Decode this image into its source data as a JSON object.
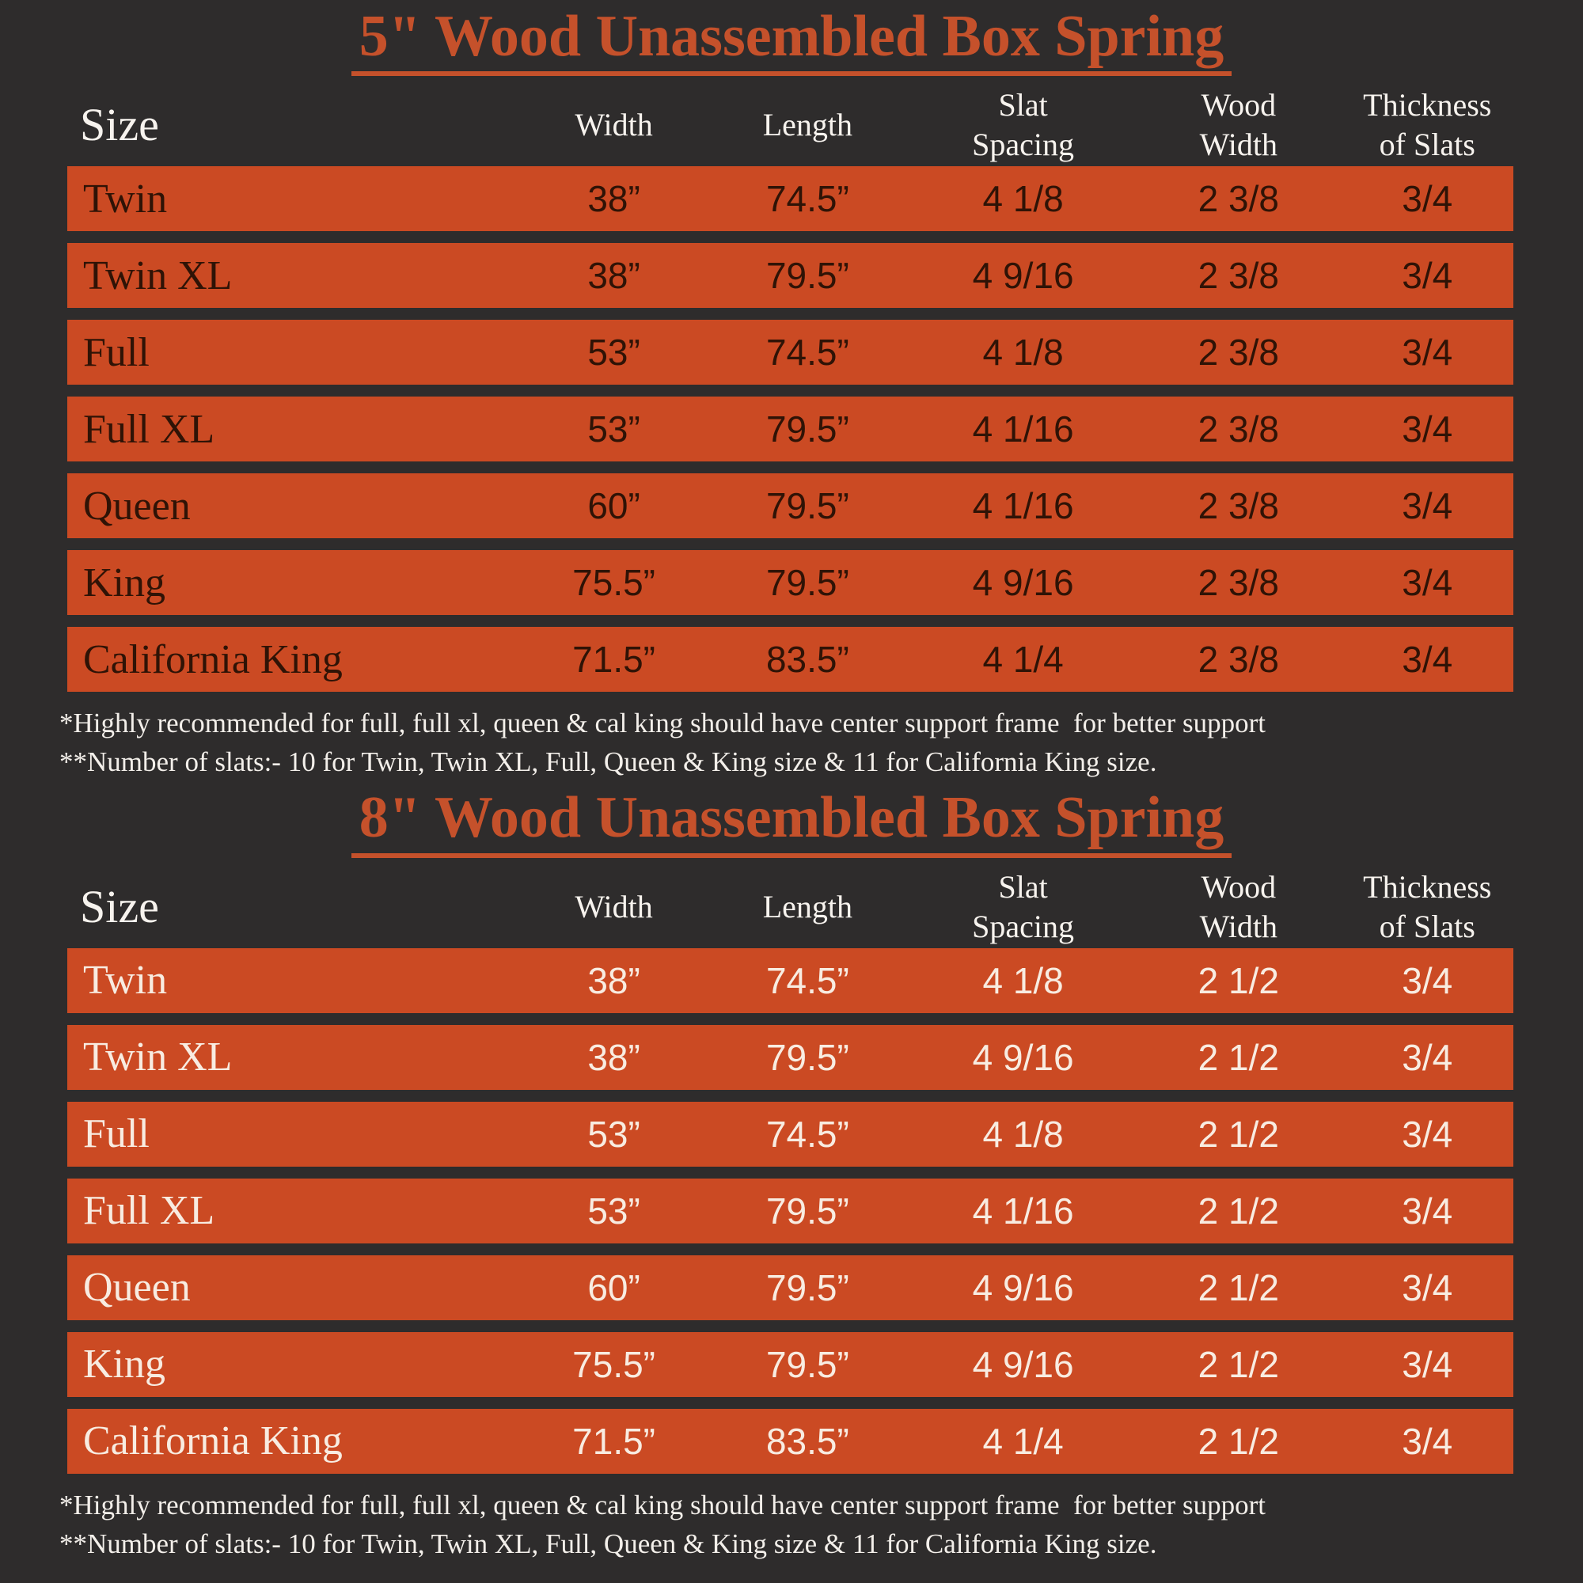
{
  "colors": {
    "background": "#2e2c2c",
    "accent_orange": "#c5512b",
    "row_orange": "#cb4a23",
    "table1_row_text": "#2f1306",
    "table2_row_text": "#f8ece1",
    "header_text": "#f7f3ee",
    "footnote_text": "#f3efea"
  },
  "tables": [
    {
      "title": "5\" Wood Unassembled Box Spring",
      "headers": {
        "size": "Size",
        "width": "Width",
        "length": "Length",
        "slat_spacing": "Slat\nSpacing",
        "wood_width": "Wood\nWidth",
        "thickness": "Thickness\nof Slats"
      },
      "rows": [
        [
          "Twin",
          "38”",
          "74.5”",
          "4 1/8",
          "2 3/8",
          "3/4"
        ],
        [
          "Twin XL",
          "38”",
          "79.5”",
          "4 9/16",
          "2 3/8",
          "3/4"
        ],
        [
          "Full",
          "53”",
          "74.5”",
          "4 1/8",
          "2 3/8",
          "3/4"
        ],
        [
          "Full XL",
          "53”",
          "79.5”",
          "4 1/16",
          "2 3/8",
          "3/4"
        ],
        [
          "Queen",
          "60”",
          "79.5”",
          "4 1/16",
          "2 3/8",
          "3/4"
        ],
        [
          "King",
          "75.5”",
          "79.5”",
          "4 9/16",
          "2 3/8",
          "3/4"
        ],
        [
          "California King",
          "71.5”",
          "83.5”",
          "4 1/4",
          "2 3/8",
          "3/4"
        ]
      ],
      "footnotes": [
        "*Highly recommended for full, full xl, queen & cal king should have center support frame  for better support",
        "**Number of slats:- 10 for Twin, Twin XL, Full, Queen & King size & 11 for California King size."
      ]
    },
    {
      "title": "8\" Wood Unassembled Box Spring",
      "headers": {
        "size": "Size",
        "width": "Width",
        "length": "Length",
        "slat_spacing": "Slat\nSpacing",
        "wood_width": "Wood\nWidth",
        "thickness": "Thickness\nof Slats"
      },
      "rows": [
        [
          "Twin",
          "38”",
          "74.5”",
          "4 1/8",
          "2 1/2",
          "3/4"
        ],
        [
          "Twin XL",
          "38”",
          "79.5”",
          "4 9/16",
          "2 1/2",
          "3/4"
        ],
        [
          "Full",
          "53”",
          "74.5”",
          "4 1/8",
          "2 1/2",
          "3/4"
        ],
        [
          "Full XL",
          "53”",
          "79.5”",
          "4 1/16",
          "2 1/2",
          "3/4"
        ],
        [
          "Queen",
          "60”",
          "79.5”",
          "4 9/16",
          "2 1/2",
          "3/4"
        ],
        [
          "King",
          "75.5”",
          "79.5”",
          "4 9/16",
          "2 1/2",
          "3/4"
        ],
        [
          "California King",
          "71.5”",
          "83.5”",
          "4 1/4",
          "2 1/2",
          "3/4"
        ]
      ],
      "footnotes": [
        "*Highly recommended for full, full xl, queen & cal king should have center support frame  for better support",
        "**Number of slats:- 10 for Twin, Twin XL, Full, Queen & King size & 11 for California King size."
      ]
    }
  ]
}
